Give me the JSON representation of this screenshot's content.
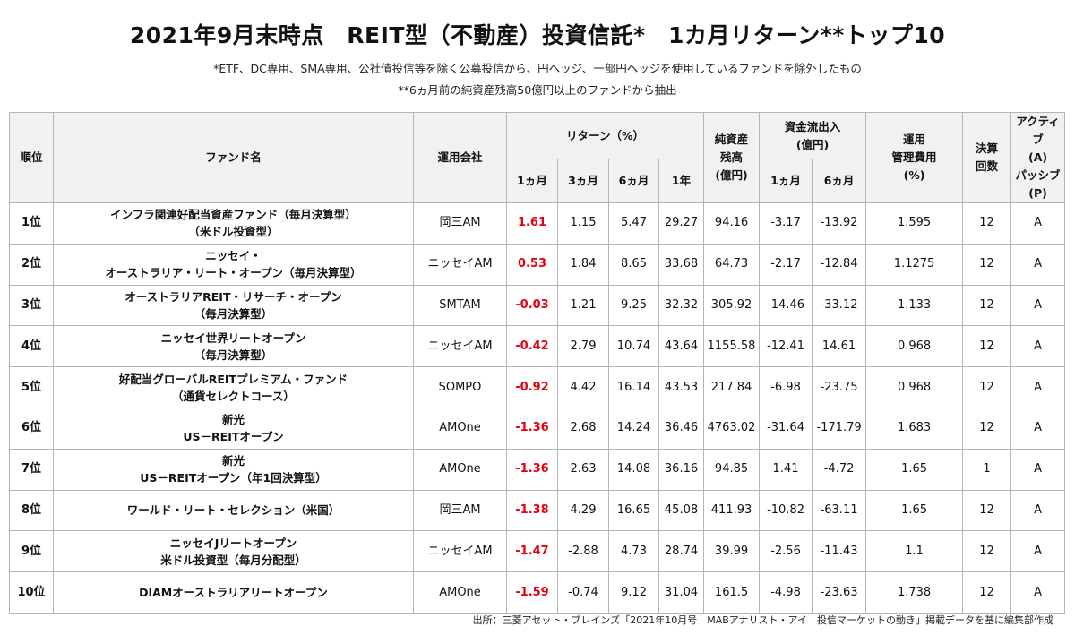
{
  "title": "2021年9月末時点　REIT型（不動産）投資信託*　1カ月リターン**トップ10",
  "notes": [
    "*ETF、DC専用、SMA専用、公社債投信等を除く公募投信から、円ヘッジ、一部円ヘッジを使用しているファンドを除外したもの",
    "**6ヵ月前の純資産残高50億円以上のファンドから抽出"
  ],
  "headers": {
    "rank": "順位",
    "fund": "ファンド名",
    "company": "運用会社",
    "return_group": "リターン（%）",
    "r1m": "1ヵ月",
    "r3m": "3ヵ月",
    "r6m": "6ヵ月",
    "r1y": "1年",
    "nav": [
      "純資産",
      "残高",
      "(億円)"
    ],
    "flow_group": [
      "資金流出入",
      "(億円)"
    ],
    "f1m": "1ヵ月",
    "f6m": "6ヵ月",
    "fee": [
      "運用",
      "管理費用",
      "(%)"
    ],
    "settle": [
      "決算",
      "回数"
    ],
    "ap": [
      "アクティブ",
      "(A)",
      "パッシブ",
      "(P)"
    ]
  },
  "rows": [
    {
      "rank": "1位",
      "fund": [
        "インフラ関連好配当資産ファンド（毎月決算型）",
        "（米ドル投資型）"
      ],
      "company": "岡三AM",
      "r1m": "1.61",
      "r3m": "1.15",
      "r6m": "5.47",
      "r1y": "29.27",
      "nav": "94.16",
      "f1m": "-3.17",
      "f6m": "-13.92",
      "fee": "1.595",
      "settle": "12",
      "ap": "A"
    },
    {
      "rank": "2位",
      "fund": [
        "ニッセイ・",
        "オーストラリア・リート・オープン（毎月決算型）"
      ],
      "company": "ニッセイAM",
      "r1m": "0.53",
      "r3m": "1.84",
      "r6m": "8.65",
      "r1y": "33.68",
      "nav": "64.73",
      "f1m": "-2.17",
      "f6m": "-12.84",
      "fee": "1.1275",
      "settle": "12",
      "ap": "A"
    },
    {
      "rank": "3位",
      "fund": [
        "オーストラリアREIT・リサーチ・オープン",
        "（毎月決算型）"
      ],
      "company": "SMTAM",
      "r1m": "-0.03",
      "r3m": "1.21",
      "r6m": "9.25",
      "r1y": "32.32",
      "nav": "305.92",
      "f1m": "-14.46",
      "f6m": "-33.12",
      "fee": "1.133",
      "settle": "12",
      "ap": "A"
    },
    {
      "rank": "4位",
      "fund": [
        "ニッセイ世界リートオープン",
        "（毎月決算型）"
      ],
      "company": "ニッセイAM",
      "r1m": "-0.42",
      "r3m": "2.79",
      "r6m": "10.74",
      "r1y": "43.64",
      "nav": "1155.58",
      "f1m": "-12.41",
      "f6m": "14.61",
      "fee": "0.968",
      "settle": "12",
      "ap": "A"
    },
    {
      "rank": "5位",
      "fund": [
        "好配当グローバルREITプレミアム・ファンド",
        "（通貨セレクトコース）"
      ],
      "company": "SOMPO",
      "r1m": "-0.92",
      "r3m": "4.42",
      "r6m": "16.14",
      "r1y": "43.53",
      "nav": "217.84",
      "f1m": "-6.98",
      "f6m": "-23.75",
      "fee": "0.968",
      "settle": "12",
      "ap": "A"
    },
    {
      "rank": "6位",
      "fund": [
        "新光",
        "US－REITオープン"
      ],
      "company": "AMOne",
      "r1m": "-1.36",
      "r3m": "2.68",
      "r6m": "14.24",
      "r1y": "36.46",
      "nav": "4763.02",
      "f1m": "-31.64",
      "f6m": "-171.79",
      "fee": "1.683",
      "settle": "12",
      "ap": "A"
    },
    {
      "rank": "7位",
      "fund": [
        "新光",
        "US－REITオープン（年1回決算型）"
      ],
      "company": "AMOne",
      "r1m": "-1.36",
      "r3m": "2.63",
      "r6m": "14.08",
      "r1y": "36.16",
      "nav": "94.85",
      "f1m": "1.41",
      "f6m": "-4.72",
      "fee": "1.65",
      "settle": "1",
      "ap": "A"
    },
    {
      "rank": "8位",
      "fund": [
        "ワールド・リート・セレクション（米国）",
        ""
      ],
      "company": "岡三AM",
      "r1m": "-1.38",
      "r3m": "4.29",
      "r6m": "16.65",
      "r1y": "45.08",
      "nav": "411.93",
      "f1m": "-10.82",
      "f6m": "-63.11",
      "fee": "1.65",
      "settle": "12",
      "ap": "A"
    },
    {
      "rank": "9位",
      "fund": [
        "ニッセイJリートオープン",
        "米ドル投資型（毎月分配型）"
      ],
      "company": "ニッセイAM",
      "r1m": "-1.47",
      "r3m": "-2.88",
      "r6m": "4.73",
      "r1y": "28.74",
      "nav": "39.99",
      "f1m": "-2.56",
      "f6m": "-11.43",
      "fee": "1.1",
      "settle": "12",
      "ap": "A"
    },
    {
      "rank": "10位",
      "fund": [
        "DIAMオーストラリアリートオープン",
        ""
      ],
      "company": "AMOne",
      "r1m": "-1.59",
      "r3m": "-0.74",
      "r6m": "9.12",
      "r1y": "31.04",
      "nav": "161.5",
      "f1m": "-4.98",
      "f6m": "-23.63",
      "fee": "1.738",
      "settle": "12",
      "ap": "A"
    }
  ],
  "source": "出所：三菱アセット・ブレインズ「2021年10月号　MABアナリスト・アイ　投信マーケットの動き」掲載データを基に編集部作成",
  "colors": {
    "highlight_return": "#e60012",
    "header_bg": "#f1f1f1",
    "border": "#b5b5b5"
  }
}
